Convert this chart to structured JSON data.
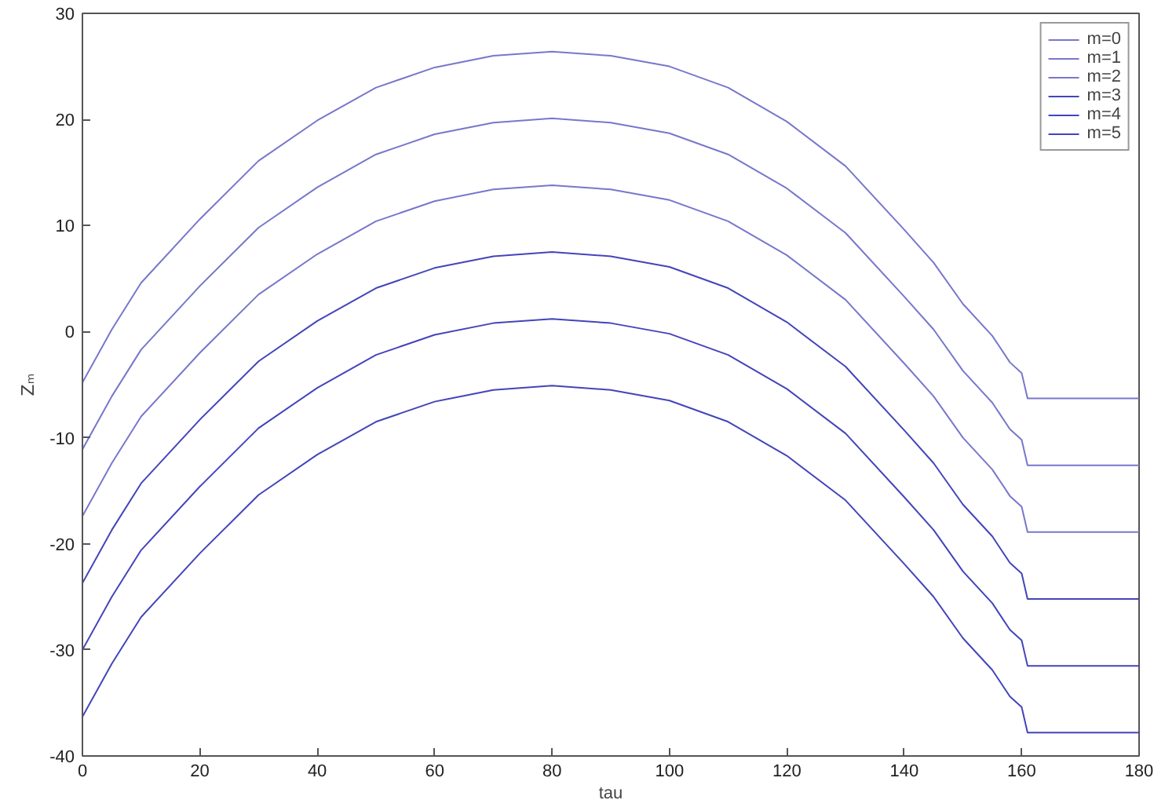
{
  "chart_data": {
    "type": "line",
    "xlabel": "tau",
    "ylabel": "Zₘ",
    "x": [
      0,
      5,
      10,
      20,
      30,
      40,
      50,
      60,
      70,
      80,
      90,
      100,
      110,
      120,
      130,
      140,
      145,
      150,
      155,
      158,
      160,
      161,
      180
    ],
    "series": [
      {
        "name": "m=0",
        "color": "#7777cc",
        "values": [
          -4.8,
          0.2,
          4.6,
          10.6,
          16.1,
          19.9,
          23.0,
          24.9,
          26.0,
          26.4,
          26.0,
          25.0,
          23.0,
          19.8,
          15.6,
          9.6,
          6.5,
          2.6,
          -0.4,
          -2.9,
          -3.9,
          -6.3,
          -6.3
        ]
      },
      {
        "name": "m=1",
        "color": "#7777cc",
        "values": [
          -11.1,
          -6.1,
          -1.7,
          4.3,
          9.8,
          13.6,
          16.7,
          18.6,
          19.7,
          20.1,
          19.7,
          18.7,
          16.7,
          13.5,
          9.3,
          3.3,
          0.2,
          -3.7,
          -6.7,
          -9.2,
          -10.2,
          -12.6,
          -12.6
        ]
      },
      {
        "name": "m=2",
        "color": "#7777cc",
        "values": [
          -17.4,
          -12.4,
          -8.0,
          -2.0,
          3.5,
          7.3,
          10.4,
          12.3,
          13.4,
          13.8,
          13.4,
          12.4,
          10.4,
          7.2,
          3.0,
          -3.0,
          -6.1,
          -10.0,
          -13.0,
          -15.5,
          -16.5,
          -18.9,
          -18.9
        ]
      },
      {
        "name": "m=3",
        "color": "#4444bb",
        "values": [
          -23.7,
          -18.7,
          -14.3,
          -8.3,
          -2.8,
          1.0,
          4.1,
          6.0,
          7.1,
          7.5,
          7.1,
          6.1,
          4.1,
          0.9,
          -3.3,
          -9.3,
          -12.4,
          -16.3,
          -19.3,
          -21.8,
          -22.8,
          -25.2,
          -25.2
        ]
      },
      {
        "name": "m=4",
        "color": "#4444bb",
        "values": [
          -30.0,
          -25.0,
          -20.6,
          -14.6,
          -9.1,
          -5.3,
          -2.2,
          -0.3,
          0.8,
          1.2,
          0.8,
          -0.2,
          -2.2,
          -5.4,
          -9.6,
          -15.6,
          -18.7,
          -22.6,
          -25.6,
          -28.1,
          -29.1,
          -31.5,
          -31.5
        ]
      },
      {
        "name": "m=5",
        "color": "#4444bb",
        "values": [
          -36.3,
          -31.3,
          -26.9,
          -20.9,
          -15.4,
          -11.6,
          -8.5,
          -6.6,
          -5.5,
          -5.1,
          -5.5,
          -6.5,
          -8.5,
          -11.7,
          -15.9,
          -21.9,
          -25.0,
          -28.9,
          -31.9,
          -34.4,
          -35.4,
          -37.8,
          -37.8
        ]
      }
    ],
    "xlim": [
      0,
      180
    ],
    "xticks": [
      0,
      20,
      40,
      60,
      80,
      100,
      120,
      140,
      160,
      180
    ],
    "ylim": [
      -40,
      30
    ],
    "yticks": [
      -40,
      -30,
      -20,
      -10,
      0,
      10,
      20,
      30
    ],
    "grid": false,
    "legend": "top right",
    "marker": "none",
    "line_style": "solid"
  }
}
